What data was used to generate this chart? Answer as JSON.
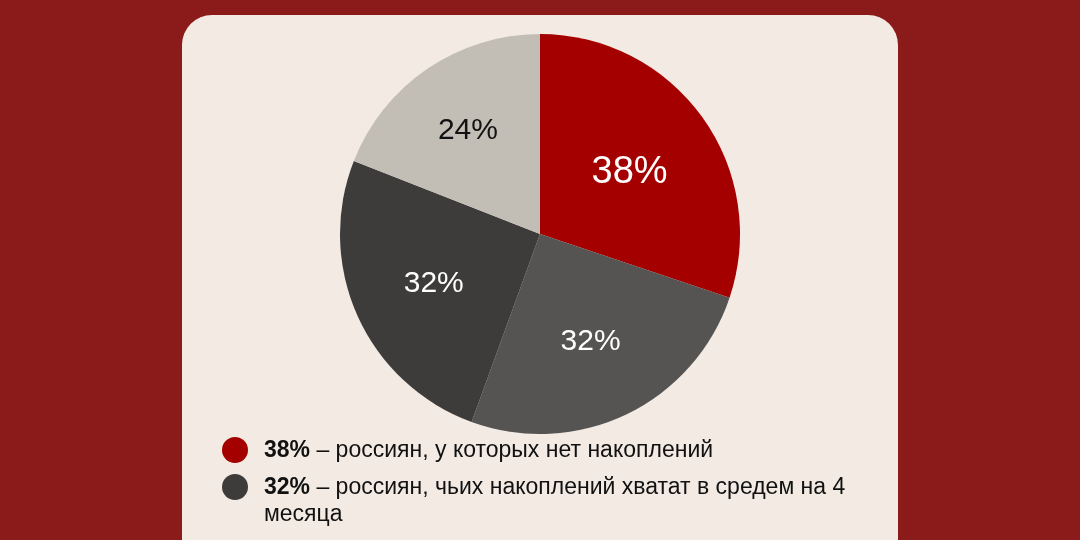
{
  "chart_data": {
    "type": "pie",
    "categories": [
      "38% – россиян, у которых нет накоплений",
      null,
      "32% – россиян, чьих накоплений хватат в средем на 4 месяца",
      null
    ],
    "values": [
      38,
      32,
      32,
      24
    ],
    "colors": [
      "#a50000",
      "#555452",
      "#3d3c3b",
      "#c2bdb5"
    ],
    "value_labels": [
      "38%",
      "32%",
      "32%",
      "24%"
    ],
    "legend": "bottom"
  }
}
